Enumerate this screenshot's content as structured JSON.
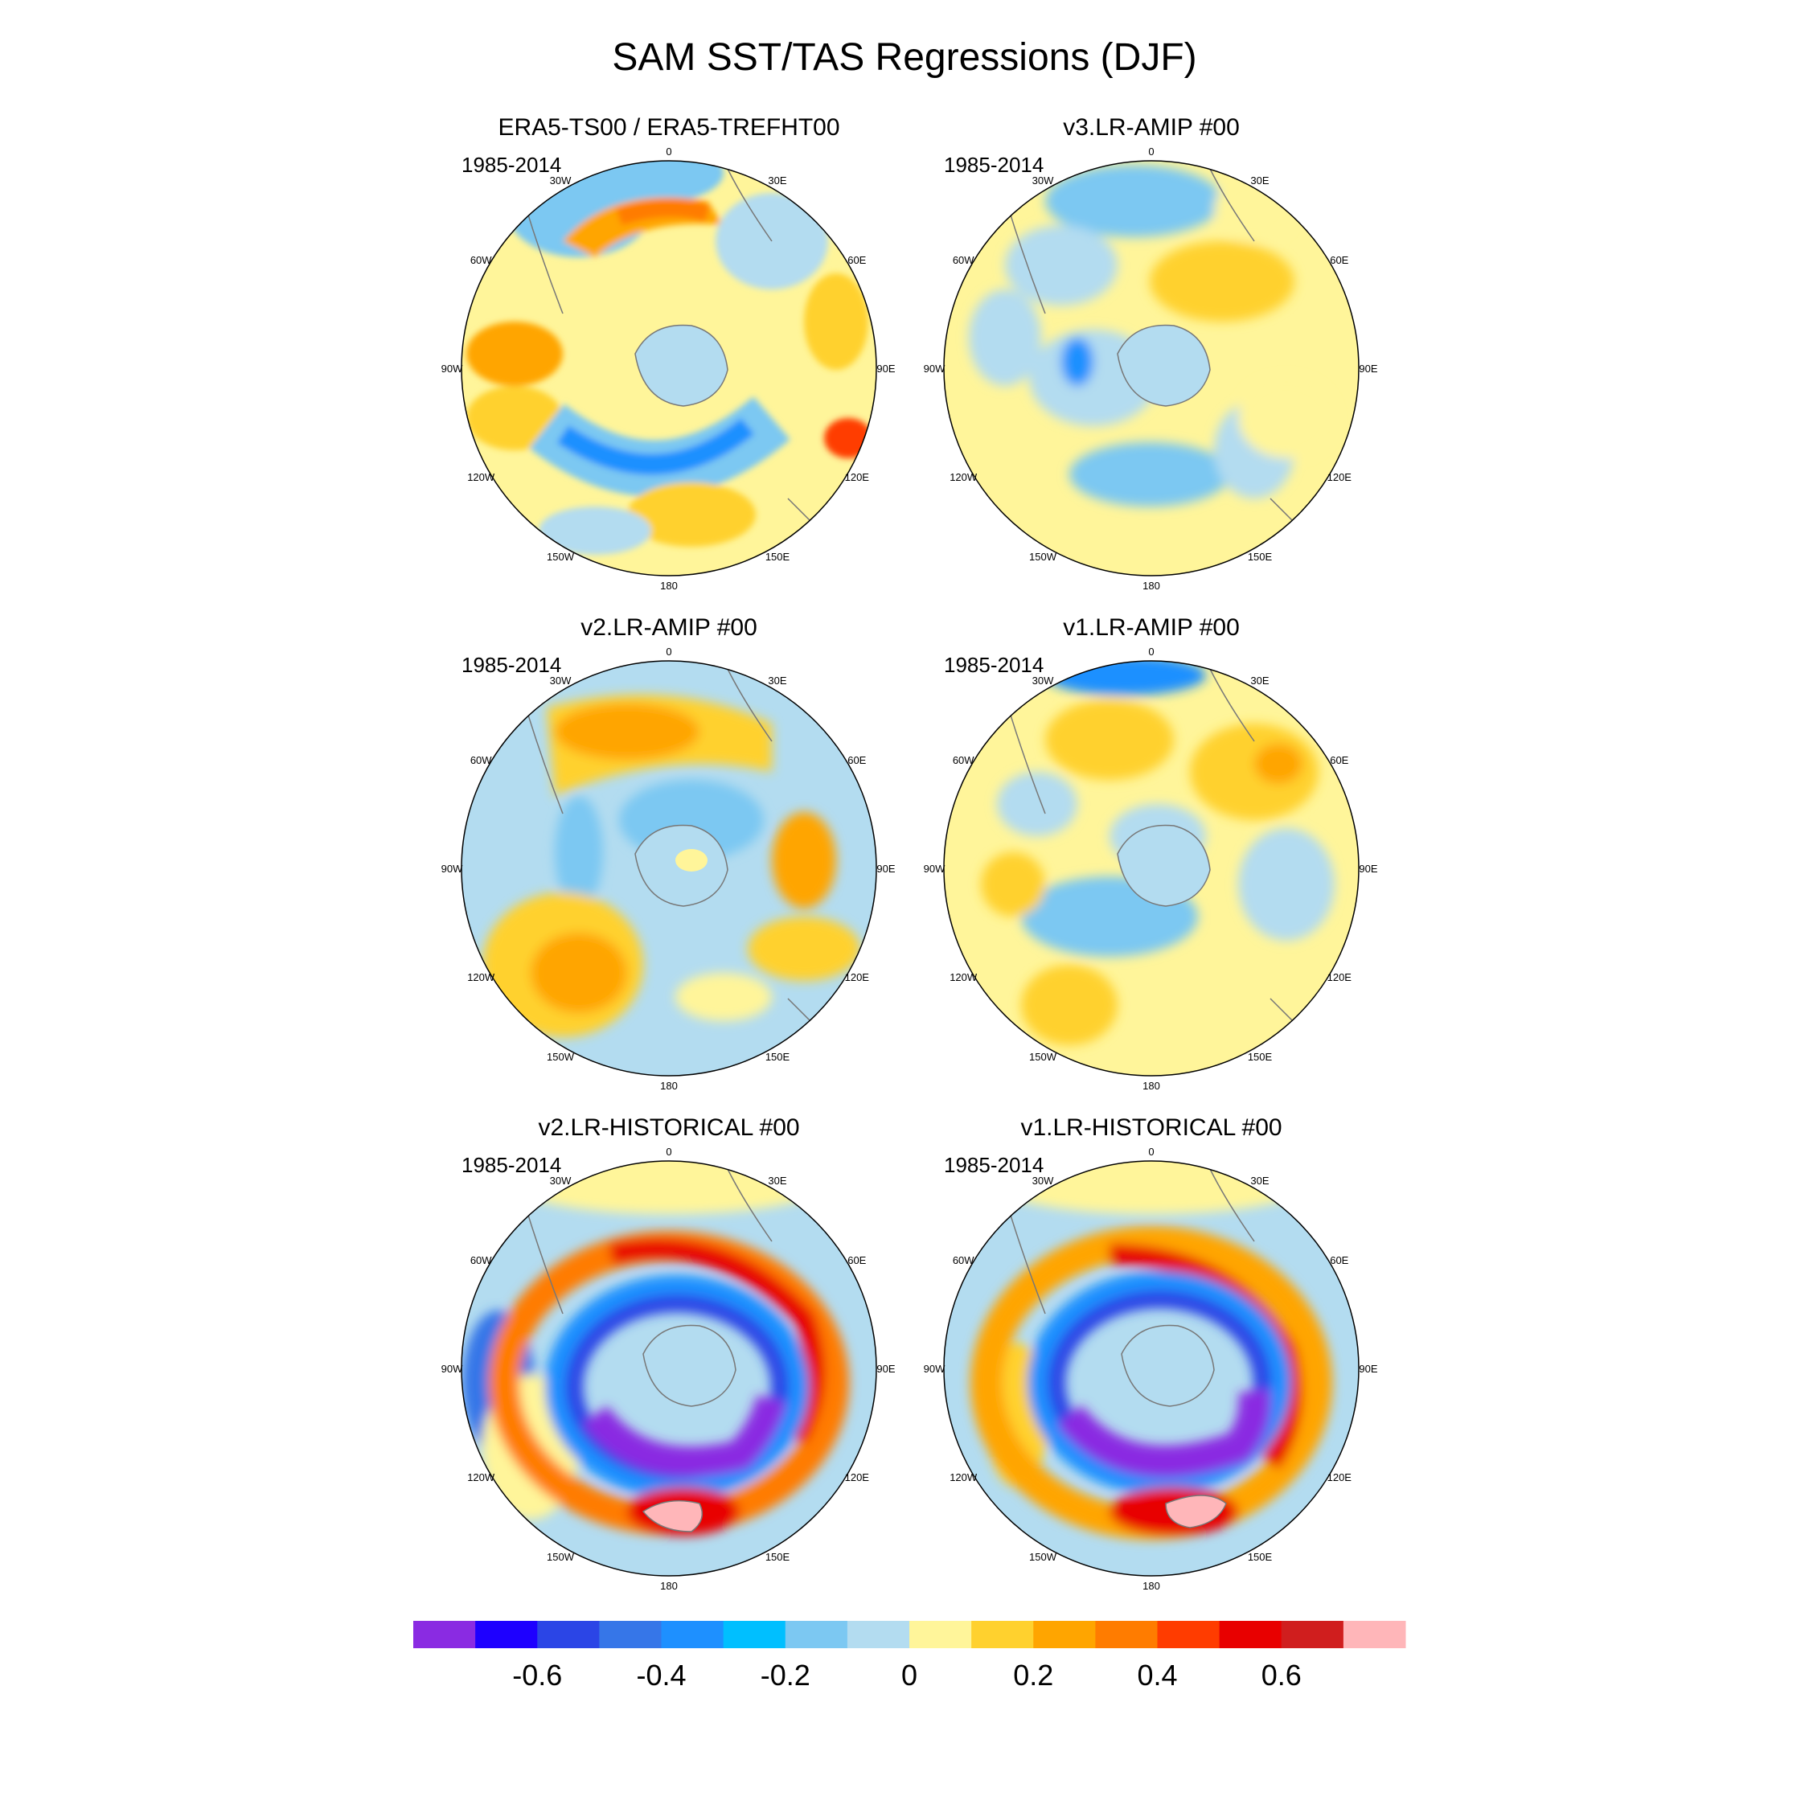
{
  "figure": {
    "title": "SAM SST/TAS Regressions (DJF)"
  },
  "panels": [
    {
      "id": "era5",
      "title": "ERA5-TS00 / ERA5-TREFHT00",
      "period": "1985-2014"
    },
    {
      "id": "v3amip",
      "title": "v3.LR-AMIP  #00",
      "period": "1985-2014"
    },
    {
      "id": "v2amip",
      "title": "v2.LR-AMIP  #00",
      "period": "1985-2014"
    },
    {
      "id": "v1amip",
      "title": "v1.LR-AMIP  #00",
      "period": "1985-2014"
    },
    {
      "id": "v2hist",
      "title": "v2.LR-HISTORICAL  #00",
      "period": "1985-2014"
    },
    {
      "id": "v1hist",
      "title": "v1.LR-HISTORICAL  #00",
      "period": "1985-2014"
    }
  ],
  "map": {
    "projection": "south-polar-stereographic",
    "longitude_labels": [
      "0",
      "30E",
      "60E",
      "90E",
      "120E",
      "150E",
      "180",
      "150W",
      "120W",
      "90W",
      "60W",
      "30W"
    ]
  },
  "colorbar": {
    "colors": [
      "#8a2be2",
      "#1e00ff",
      "#2b45e6",
      "#3676e8",
      "#1e90ff",
      "#00bfff",
      "#7cc8f2",
      "#b3dcf0",
      "#fff59a",
      "#ffd12e",
      "#ffa500",
      "#ff7c00",
      "#ff3c00",
      "#e80000",
      "#d01e1e",
      "#ffb6b9"
    ],
    "tick_labels": [
      "-0.6",
      "-0.4",
      "-0.2",
      "0",
      "0.2",
      "0.4",
      "0.6"
    ]
  }
}
